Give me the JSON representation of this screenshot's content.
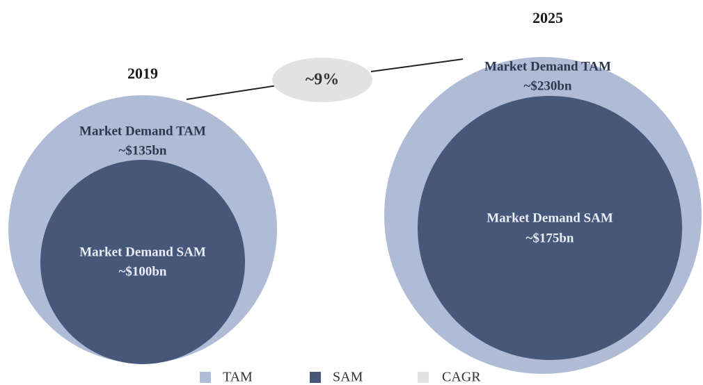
{
  "markets": [
    {
      "year": "2019",
      "tam": {
        "label": "Market Demand TAM",
        "value": "~$135bn"
      },
      "sam": {
        "label": "Market Demand SAM",
        "value": "~$100bn"
      }
    },
    {
      "year": "2025",
      "tam": {
        "label": "Market Demand TAM",
        "value": "~$230bn"
      },
      "sam": {
        "label": "Market Demand SAM",
        "value": "~$175bn"
      }
    }
  ],
  "cagr": "~9%",
  "legend": [
    {
      "name": "TAM",
      "color": "#b0bcd6"
    },
    {
      "name": "SAM",
      "color": "#465779"
    },
    {
      "name": "CAGR",
      "color": "#e2e2e2"
    }
  ]
}
